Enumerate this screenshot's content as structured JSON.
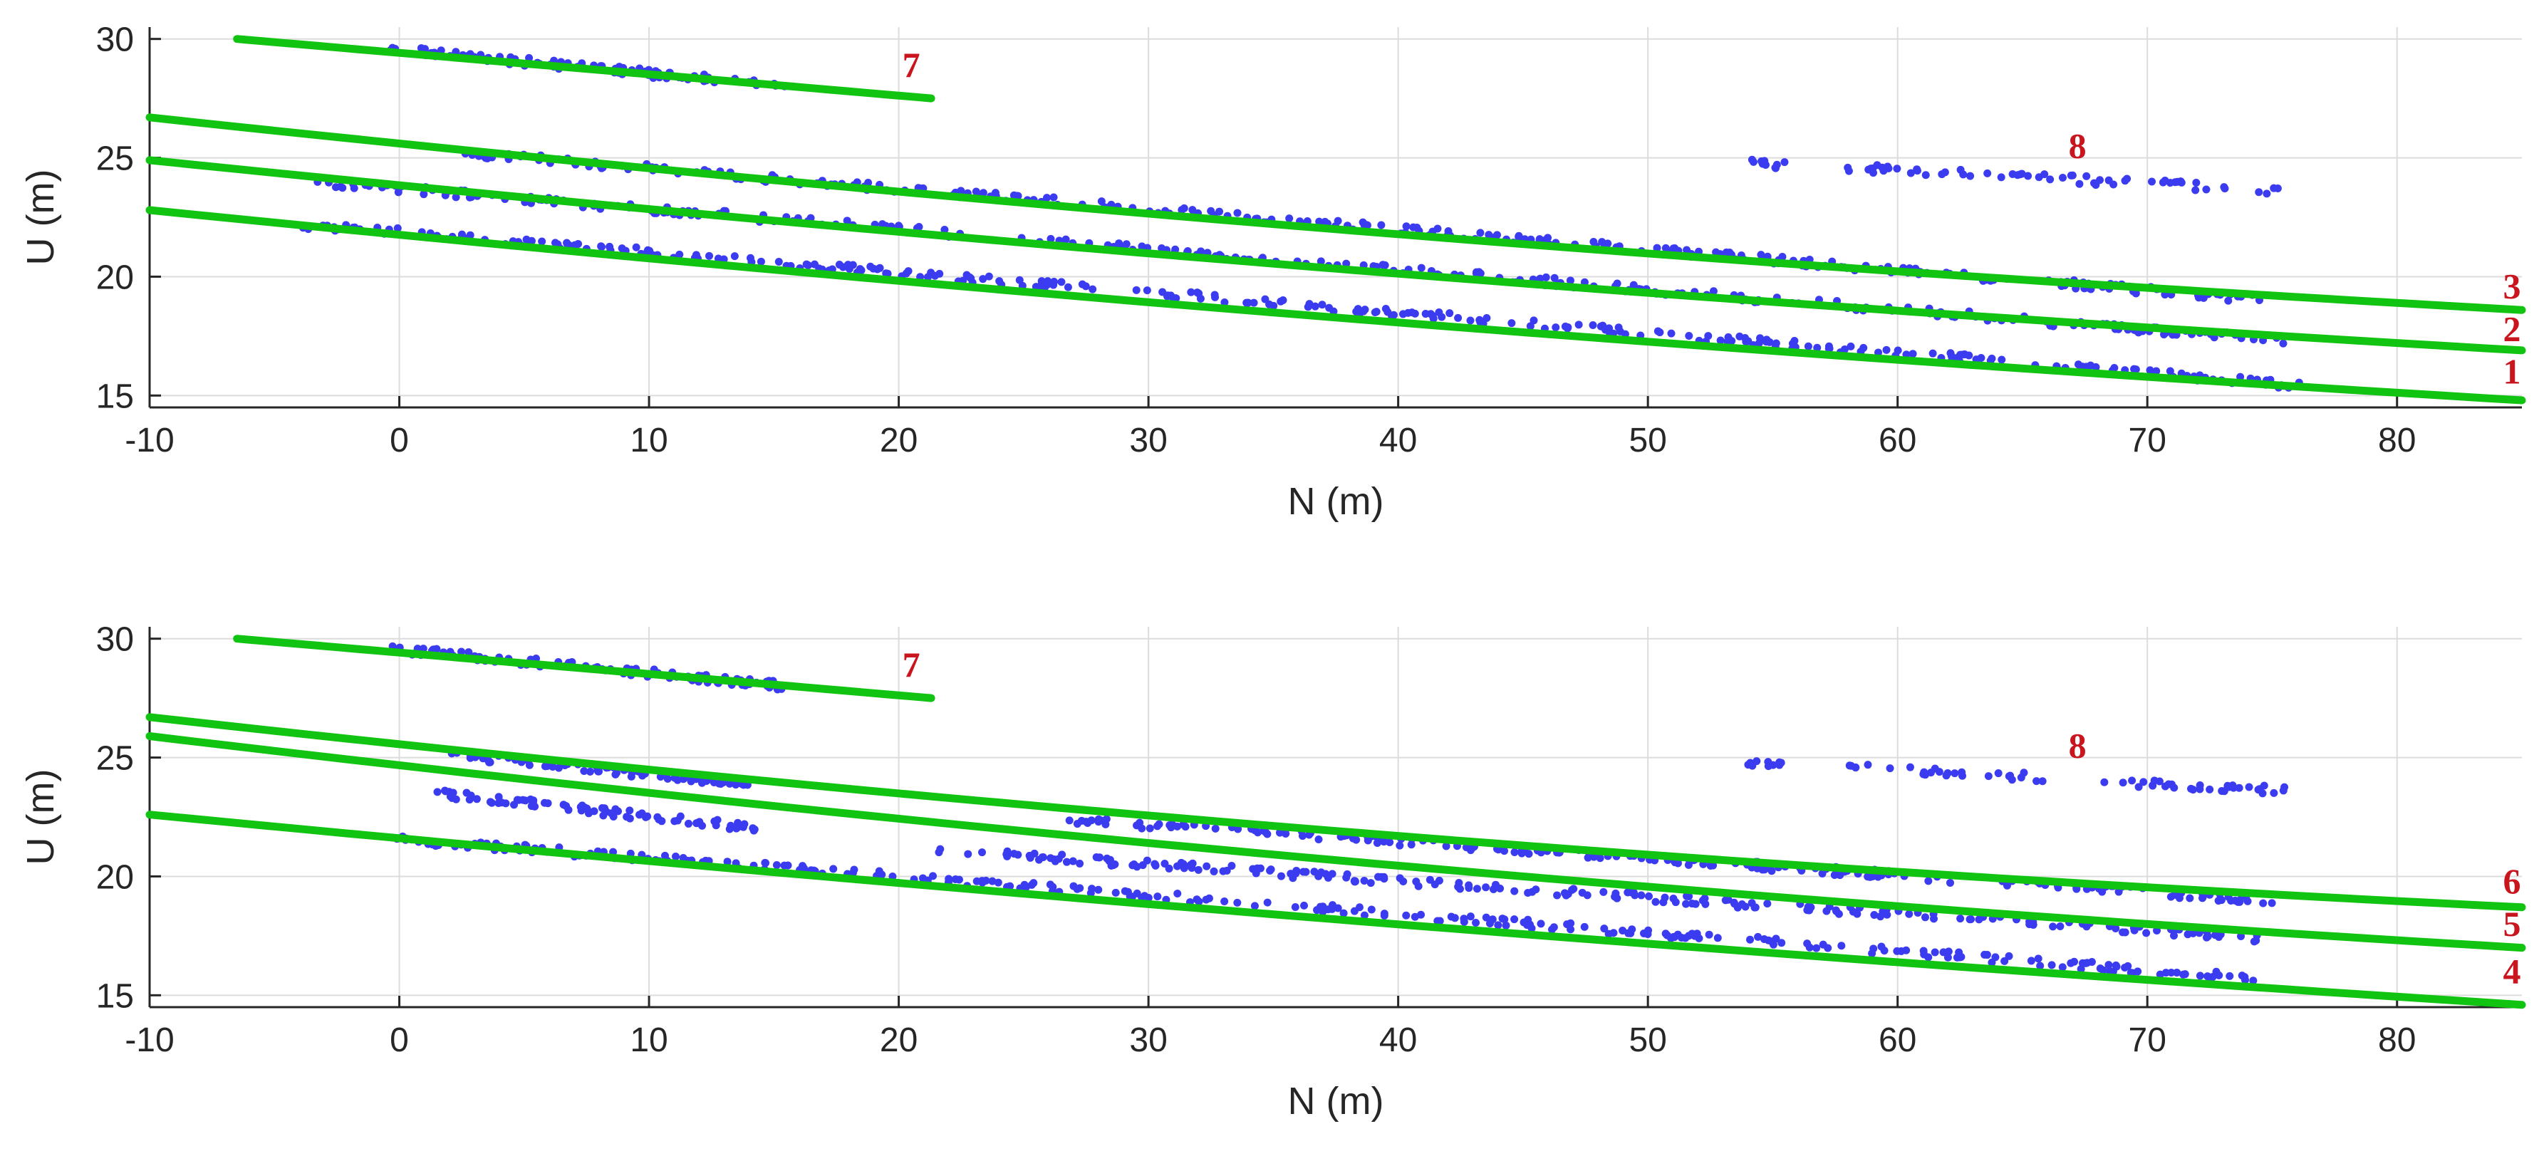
{
  "chart_data": [
    {
      "type": "scatter",
      "xlabel": "N (m)",
      "ylabel": "U (m)",
      "xlim": [
        -10,
        85
      ],
      "ylim": [
        14.5,
        30.5
      ],
      "xticks": [
        "-10",
        "0",
        "10",
        "20",
        "30",
        "40",
        "50",
        "60",
        "70",
        "80"
      ],
      "yticks": [
        "15",
        "20",
        "25",
        "30"
      ],
      "grid": true,
      "colors": {
        "points": "#3b3bf0",
        "lines": "#11c411",
        "annotations": "#c8151e"
      },
      "point_clusters": [
        {
          "x_range": [
            -0.5,
            15.5
          ],
          "y_range": [
            29.6,
            28.0
          ],
          "density": 90
        },
        {
          "x_range": [
            2.5,
            75
          ],
          "y_range": [
            25.2,
            19.0
          ],
          "density": 300
        },
        {
          "x_range": [
            -3.5,
            75.5
          ],
          "y_range": [
            24.0,
            17.3
          ],
          "density": 300
        },
        {
          "x_range": [
            -4,
            76.5
          ],
          "y_range": [
            22.2,
            15.4
          ],
          "density": 320
        },
        {
          "x_range": [
            54,
            55.5
          ],
          "y_range": [
            24.8,
            24.7
          ],
          "density": 10
        },
        {
          "x_range": [
            58,
            75.5
          ],
          "y_range": [
            24.6,
            23.6
          ],
          "density": 60
        }
      ],
      "fit_lines": [
        {
          "label": "7",
          "x": [
            -6.5,
            21.3
          ],
          "y": [
            30.0,
            27.5
          ]
        },
        {
          "label": "3",
          "x": [
            -10,
            85
          ],
          "y": [
            26.7,
            18.6
          ],
          "c": 0.00029
        },
        {
          "label": "2",
          "x": [
            -10,
            85
          ],
          "y": [
            24.9,
            16.9
          ],
          "c": 0.00025
        },
        {
          "label": "1",
          "x": [
            -10,
            85
          ],
          "y": [
            22.8,
            14.8
          ],
          "c": 0.00023
        }
      ],
      "annotations": [
        {
          "text": "7",
          "x": 20.5,
          "y": 28.4
        },
        {
          "text": "8",
          "x": 67.2,
          "y": 25.0
        },
        {
          "text": "3",
          "x": 84.6,
          "y": 19.1
        },
        {
          "text": "2",
          "x": 84.6,
          "y": 17.3
        },
        {
          "text": "1",
          "x": 84.6,
          "y": 15.5
        }
      ]
    },
    {
      "type": "scatter",
      "xlabel": "N (m)",
      "ylabel": "U (m)",
      "xlim": [
        -10,
        85
      ],
      "ylim": [
        14.5,
        30.5
      ],
      "xticks": [
        "-10",
        "0",
        "10",
        "20",
        "30",
        "40",
        "50",
        "60",
        "70",
        "80"
      ],
      "yticks": [
        "15",
        "20",
        "25",
        "30"
      ],
      "grid": true,
      "colors": {
        "points": "#3b3bf0",
        "lines": "#11c411",
        "annotations": "#c8151e"
      },
      "point_clusters": [
        {
          "x_range": [
            -0.5,
            15.5
          ],
          "y_range": [
            29.6,
            28.0
          ],
          "density": 90
        },
        {
          "x_range": [
            2,
            14
          ],
          "y_range": [
            25.1,
            23.9
          ],
          "density": 80
        },
        {
          "x_range": [
            26.5,
            75
          ],
          "y_range": [
            22.4,
            19.0
          ],
          "density": 220
        },
        {
          "x_range": [
            1.5,
            14.5
          ],
          "y_range": [
            23.5,
            22.0
          ],
          "density": 80
        },
        {
          "x_range": [
            21.5,
            74.5
          ],
          "y_range": [
            21.1,
            17.4
          ],
          "density": 220
        },
        {
          "x_range": [
            -0.5,
            74.5
          ],
          "y_range": [
            21.6,
            15.7
          ],
          "density": 300
        },
        {
          "x_range": [
            54,
            55.5
          ],
          "y_range": [
            24.8,
            24.7
          ],
          "density": 10
        },
        {
          "x_range": [
            58,
            75.5
          ],
          "y_range": [
            24.6,
            23.6
          ],
          "density": 60
        }
      ],
      "fit_lines": [
        {
          "label": "7",
          "x": [
            -6.5,
            21.3
          ],
          "y": [
            30.0,
            27.5
          ]
        },
        {
          "label": "6",
          "x": [
            -10,
            85
          ],
          "y": [
            26.7,
            18.7
          ],
          "c": 0.00035
        },
        {
          "label": "5",
          "x": [
            -10,
            85
          ],
          "y": [
            25.9,
            17.0
          ],
          "c": 0.00034
        },
        {
          "label": "4",
          "x": [
            -10,
            85
          ],
          "y": [
            22.6,
            14.6
          ],
          "c": 0.00018
        }
      ],
      "annotations": [
        {
          "text": "7",
          "x": 20.5,
          "y": 28.4
        },
        {
          "text": "8",
          "x": 67.2,
          "y": 25.0
        },
        {
          "text": "6",
          "x": 84.6,
          "y": 19.3
        },
        {
          "text": "5",
          "x": 84.6,
          "y": 17.5
        },
        {
          "text": "4",
          "x": 84.6,
          "y": 15.5
        }
      ]
    }
  ]
}
